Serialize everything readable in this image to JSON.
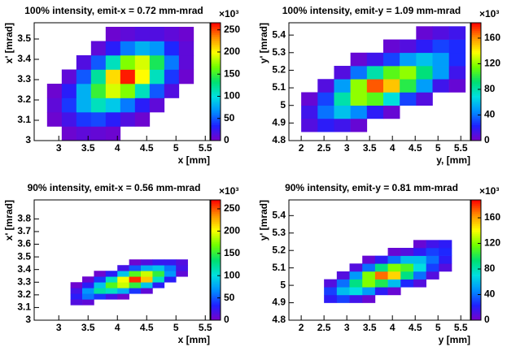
{
  "chart_data": [
    {
      "type": "heatmap",
      "title": "100% intensity, emit-x = 0.72 mm-mrad",
      "x_label": "x [mm]",
      "y_label": "x' [mrad]",
      "xlim": [
        2.58,
        5.58
      ],
      "ylim": [
        3,
        3.58
      ],
      "zlim": [
        0,
        266
      ],
      "xticks": [
        3,
        3.5,
        4,
        4.5,
        5,
        5.5
      ],
      "yticks": [
        3,
        3.1,
        3.2,
        3.3,
        3.4,
        3.5
      ],
      "zticks": [
        0,
        50,
        100,
        150,
        200,
        250
      ],
      "z_exponent_label": "×10³",
      "colormap": [
        "#7a00c8",
        "#2020ff",
        "#0090ff",
        "#00e0e0",
        "#00e070",
        "#70ff00",
        "#ffff00",
        "#ff9000",
        "#ff0000"
      ],
      "x_bins": [
        2.8,
        3.05,
        3.3,
        3.55,
        3.8,
        4.05,
        4.3,
        4.55,
        4.8,
        5.05,
        5.3
      ],
      "y_bins": [
        3.0,
        3.07,
        3.14,
        3.21,
        3.28,
        3.35,
        3.42,
        3.49,
        3.56
      ],
      "z": [
        [
          null,
          5,
          10,
          8,
          5,
          null,
          null,
          null,
          null,
          null
        ],
        [
          5,
          20,
          40,
          45,
          30,
          15,
          5,
          null,
          null,
          null
        ],
        [
          10,
          40,
          80,
          110,
          90,
          60,
          30,
          10,
          null,
          null
        ],
        [
          5,
          30,
          80,
          150,
          190,
          170,
          110,
          50,
          15,
          null
        ],
        [
          null,
          10,
          50,
          120,
          210,
          260,
          200,
          110,
          40,
          5
        ],
        [
          null,
          null,
          15,
          50,
          110,
          170,
          190,
          140,
          60,
          10
        ],
        [
          null,
          null,
          null,
          10,
          30,
          60,
          80,
          70,
          35,
          10
        ],
        [
          null,
          null,
          null,
          null,
          5,
          10,
          15,
          15,
          10,
          5
        ]
      ]
    },
    {
      "type": "heatmap",
      "title": "100% intensity, emit-y = 1.09 mm-mrad",
      "x_label": "y, [mm]",
      "y_label": "y' [mrad]",
      "xlim": [
        1.73,
        5.71
      ],
      "ylim": [
        4.8,
        5.47
      ],
      "zlim": [
        0,
        184
      ],
      "xticks": [
        2,
        2.5,
        3,
        3.5,
        4,
        4.5,
        5,
        5.5
      ],
      "yticks": [
        4.8,
        4.9,
        5,
        5.1,
        5.2,
        5.3,
        5.4
      ],
      "zticks": [
        0,
        40,
        80,
        120,
        160
      ],
      "z_exponent_label": "×10³",
      "colormap": [
        "#7a00c8",
        "#2020ff",
        "#0090ff",
        "#00e0e0",
        "#00e070",
        "#70ff00",
        "#ffff00",
        "#ff9000",
        "#ff0000"
      ],
      "x_bins": [
        2.0,
        2.36,
        2.72,
        3.08,
        3.44,
        3.8,
        4.16,
        4.52,
        4.88,
        5.24,
        5.6
      ],
      "y_bins": [
        4.85,
        4.925,
        5.0,
        5.075,
        5.15,
        5.225,
        5.3,
        5.375,
        5.45
      ],
      "z": [
        [
          10,
          20,
          15,
          5,
          null,
          null,
          null,
          null,
          null,
          null
        ],
        [
          15,
          40,
          60,
          45,
          20,
          5,
          null,
          null,
          null,
          null
        ],
        [
          5,
          30,
          80,
          120,
          110,
          70,
          30,
          10,
          null,
          null
        ],
        [
          null,
          10,
          50,
          120,
          170,
          150,
          100,
          50,
          15,
          5
        ],
        [
          null,
          null,
          10,
          40,
          80,
          110,
          120,
          90,
          50,
          15
        ],
        [
          null,
          null,
          null,
          5,
          15,
          30,
          50,
          60,
          50,
          25
        ],
        [
          null,
          null,
          null,
          null,
          null,
          5,
          10,
          20,
          30,
          25
        ],
        [
          null,
          null,
          null,
          null,
          null,
          null,
          null,
          5,
          10,
          15
        ]
      ]
    },
    {
      "type": "heatmap",
      "title": "90% intensity, emit-x = 0.56 mm-mrad",
      "x_label": "x [mm]",
      "y_label": "x' [mrad]",
      "xlim": [
        2.58,
        5.58
      ],
      "ylim": [
        3,
        3.95
      ],
      "zlim": [
        0,
        270
      ],
      "xticks": [
        3,
        3.5,
        4,
        4.5,
        5,
        5.5
      ],
      "yticks": [
        3,
        3.1,
        3.2,
        3.3,
        3.4,
        3.5,
        3.6,
        3.7,
        3.8
      ],
      "zticks": [
        0,
        50,
        100,
        150,
        200,
        250
      ],
      "z_exponent_label": "×10³",
      "colormap": [
        "#7a00c8",
        "#2020ff",
        "#0090ff",
        "#00e0e0",
        "#00e070",
        "#70ff00",
        "#ffff00",
        "#ff9000",
        "#ff0000"
      ],
      "x_bins": [
        3.2,
        3.4,
        3.6,
        3.8,
        4.0,
        4.2,
        4.4,
        4.6,
        4.8,
        5.0,
        5.2
      ],
      "y_bins": [
        3.12,
        3.165,
        3.21,
        3.255,
        3.3,
        3.345,
        3.39,
        3.435,
        3.48
      ],
      "z": [
        [
          15,
          10,
          null,
          null,
          null,
          null,
          null,
          null,
          null,
          null
        ],
        [
          30,
          60,
          40,
          20,
          5,
          null,
          null,
          null,
          null,
          null
        ],
        [
          20,
          70,
          120,
          110,
          80,
          40,
          10,
          null,
          null,
          null
        ],
        [
          5,
          30,
          90,
          160,
          190,
          150,
          90,
          30,
          null,
          null
        ],
        [
          null,
          5,
          40,
          110,
          200,
          260,
          220,
          110,
          30,
          null
        ],
        [
          null,
          null,
          5,
          30,
          90,
          160,
          190,
          150,
          70,
          10
        ],
        [
          null,
          null,
          null,
          null,
          20,
          50,
          80,
          90,
          60,
          20
        ],
        [
          null,
          null,
          null,
          null,
          null,
          5,
          15,
          25,
          25,
          15
        ]
      ]
    },
    {
      "type": "heatmap",
      "title": "90% intensity, emit-y = 0.81 mm-mrad",
      "x_label": "y [mm]",
      "y_label": "y' [mrad]",
      "xlim": [
        1.73,
        5.71
      ],
      "ylim": [
        4.8,
        5.49
      ],
      "zlim": [
        0,
        188
      ],
      "xticks": [
        2,
        2.5,
        3,
        3.5,
        4,
        4.5,
        5,
        5.5
      ],
      "yticks": [
        4.8,
        4.9,
        5,
        5.1,
        5.2,
        5.3,
        5.4
      ],
      "zticks": [
        0,
        40,
        80,
        120,
        160
      ],
      "z_exponent_label": "×10³",
      "colormap": [
        "#7a00c8",
        "#2020ff",
        "#0090ff",
        "#00e0e0",
        "#00e070",
        "#70ff00",
        "#ffff00",
        "#ff9000",
        "#ff0000"
      ],
      "x_bins": [
        2.5,
        2.78,
        3.06,
        3.34,
        3.62,
        3.9,
        4.18,
        4.46,
        4.74,
        5.02,
        5.3
      ],
      "y_bins": [
        4.9,
        4.945,
        4.99,
        5.035,
        5.08,
        5.125,
        5.17,
        5.215,
        5.26
      ],
      "z": [
        [
          20,
          30,
          15,
          5,
          null,
          null,
          null,
          null,
          null,
          null
        ],
        [
          30,
          60,
          70,
          50,
          20,
          5,
          null,
          null,
          null,
          null
        ],
        [
          10,
          40,
          90,
          120,
          100,
          60,
          25,
          10,
          null,
          null
        ],
        [
          null,
          10,
          50,
          120,
          170,
          150,
          90,
          40,
          10,
          null
        ],
        [
          null,
          null,
          10,
          40,
          90,
          120,
          110,
          70,
          30,
          10
        ],
        [
          null,
          null,
          null,
          5,
          20,
          40,
          60,
          60,
          40,
          20
        ],
        [
          null,
          null,
          null,
          null,
          null,
          5,
          10,
          20,
          30,
          25
        ],
        [
          null,
          null,
          null,
          null,
          null,
          null,
          null,
          5,
          15,
          20
        ]
      ]
    }
  ]
}
